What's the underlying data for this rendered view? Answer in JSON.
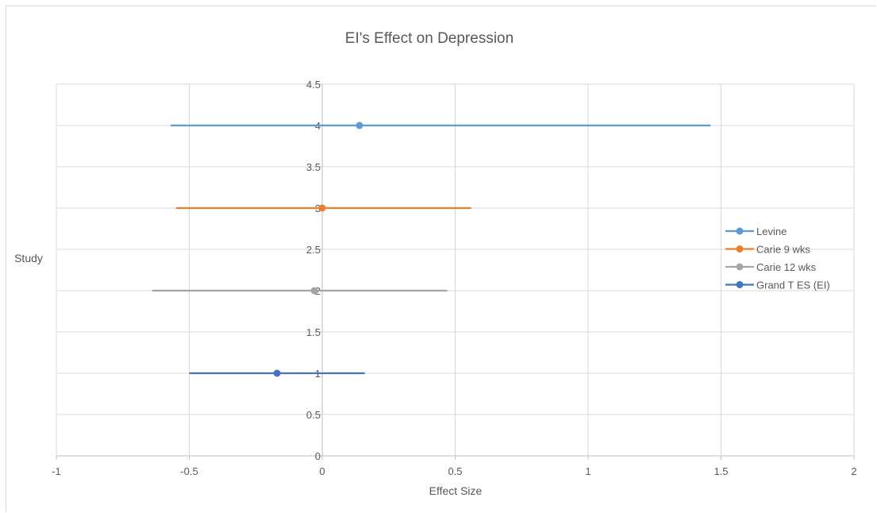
{
  "chart_data": {
    "type": "scatter",
    "title": "EI's Effect on Depression",
    "xlabel": "Effect Size",
    "ylabel": "Study",
    "xlim": [
      -1,
      2
    ],
    "ylim": [
      0,
      4.5
    ],
    "x_ticks": [
      "-1",
      "-0.5",
      "0",
      "0.5",
      "1",
      "1.5",
      "2"
    ],
    "y_ticks": [
      "0",
      "0.5",
      "1",
      "1.5",
      "2",
      "2.5",
      "3",
      "3.5",
      "4",
      "4.5"
    ],
    "grid": true,
    "legend_position": "right",
    "series": [
      {
        "name": "Levine",
        "color": "#5b9bd5",
        "x": 0.14,
        "y": 4,
        "x_low": -0.57,
        "x_high": 1.46
      },
      {
        "name": "Carie 9 wks",
        "color": "#ed7d31",
        "x": 0.0,
        "y": 3,
        "x_low": -0.55,
        "x_high": 0.56
      },
      {
        "name": "Carie 12 wks",
        "color": "#a5a5a5",
        "x": -0.03,
        "y": 2,
        "x_low": -0.64,
        "x_high": 0.47
      },
      {
        "name": "Grand T ES (EI)",
        "color": "#4472c4",
        "x": -0.17,
        "y": 1,
        "x_low": -0.5,
        "x_high": 0.16
      }
    ]
  }
}
